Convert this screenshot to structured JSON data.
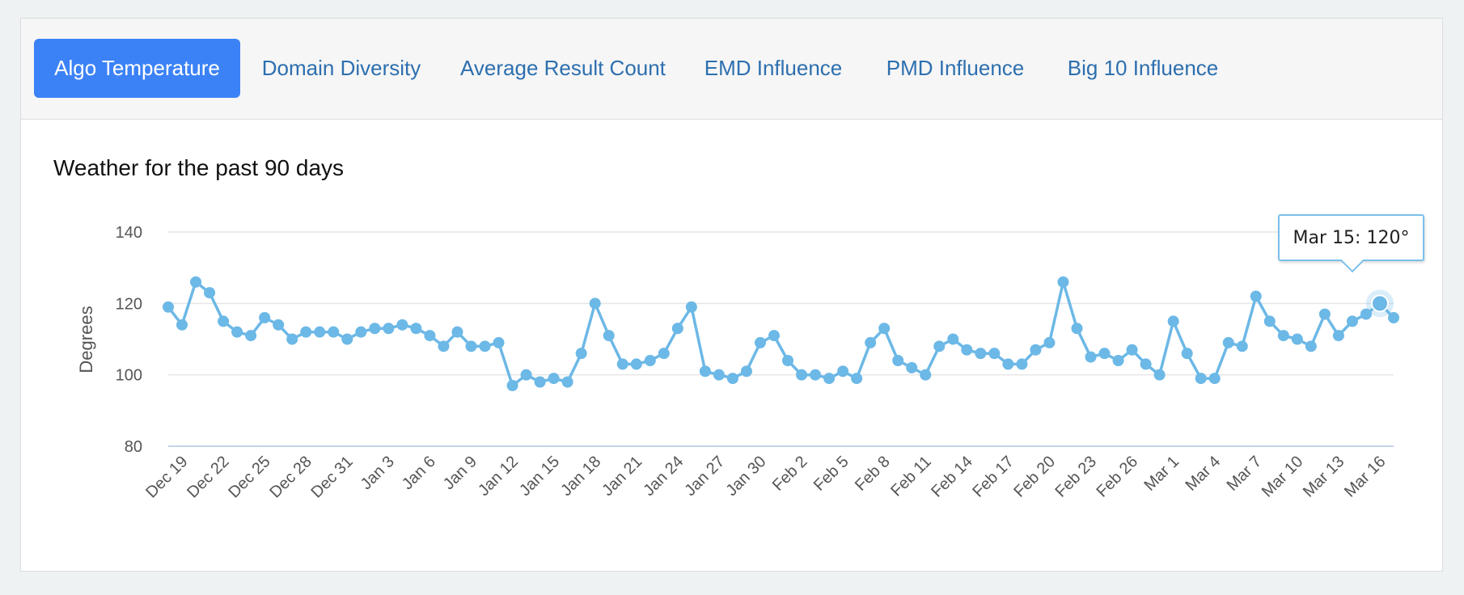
{
  "tabs": [
    {
      "label": "Algo Temperature",
      "active": true
    },
    {
      "label": "Domain Diversity",
      "active": false
    },
    {
      "label": "Average Result Count",
      "active": false
    },
    {
      "label": "EMD Influence",
      "active": false
    },
    {
      "label": "PMD Influence",
      "active": false
    },
    {
      "label": "Big 10 Influence",
      "active": false
    }
  ],
  "colors": {
    "accent": "#3b82f6",
    "series": "#6cb8e6",
    "link": "#2d6faf"
  },
  "tooltip": {
    "text": "Mar 15: 120°"
  },
  "chart_data": {
    "type": "line",
    "title": "Weather for the past 90 days",
    "xlabel": "",
    "ylabel": "Degrees",
    "ylim": [
      80,
      140
    ],
    "yticks": [
      80,
      100,
      120,
      140
    ],
    "grid": true,
    "x_start": "Dec 18",
    "x_end": "Mar 16",
    "x_tick_labels": [
      "Dec 19",
      "Dec 22",
      "Dec 25",
      "Dec 28",
      "Dec 31",
      "Jan 3",
      "Jan 6",
      "Jan 9",
      "Jan 12",
      "Jan 15",
      "Jan 18",
      "Jan 21",
      "Jan 24",
      "Jan 27",
      "Jan 30",
      "Feb 2",
      "Feb 5",
      "Feb 8",
      "Feb 11",
      "Feb 14",
      "Feb 17",
      "Feb 20",
      "Feb 23",
      "Feb 26",
      "Mar 1",
      "Mar 4",
      "Mar 7",
      "Mar 10",
      "Mar 13",
      "Mar 16"
    ],
    "series": [
      {
        "values": [
          119,
          114,
          126,
          123,
          115,
          112,
          111,
          116,
          114,
          110,
          112,
          112,
          112,
          110,
          112,
          113,
          113,
          114,
          113,
          111,
          108,
          112,
          108,
          108,
          109,
          97,
          100,
          98,
          99,
          98,
          106,
          120,
          111,
          103,
          103,
          104,
          106,
          113,
          119,
          101,
          100,
          99,
          101,
          109,
          111,
          104,
          100,
          100,
          99,
          101,
          99,
          109,
          113,
          104,
          102,
          100,
          108,
          110,
          107,
          106,
          106,
          103,
          103,
          107,
          109,
          126,
          113,
          105,
          106,
          104,
          107,
          103,
          100,
          115,
          106,
          99,
          99,
          109,
          108,
          122,
          115,
          111,
          110,
          108,
          117,
          111,
          115,
          117,
          120,
          116
        ]
      }
    ],
    "highlight": {
      "label": "Mar 15",
      "value": 120
    }
  }
}
